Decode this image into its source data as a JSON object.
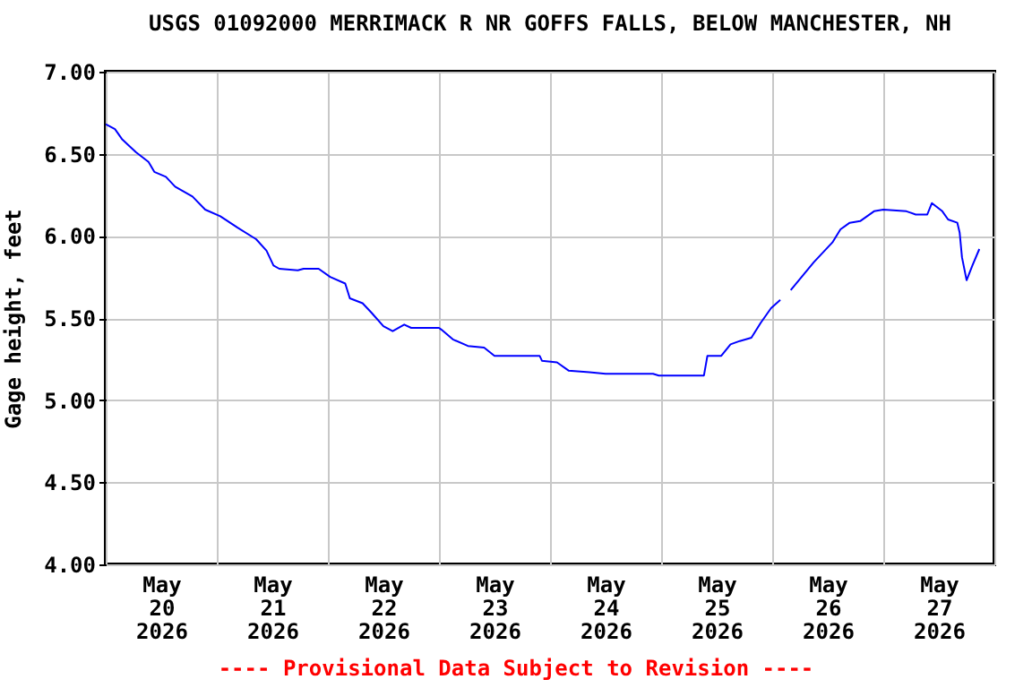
{
  "chart_data": {
    "type": "line",
    "title": "USGS 01092000 MERRIMACK R NR GOFFS FALLS, BELOW MANCHESTER, NH",
    "ylabel": "Gage height, feet",
    "annotations": [
      "---- Provisional Data Subject to Revision ----"
    ],
    "x": [
      "2026-05-20T00:00",
      "2026-05-20T02:00",
      "2026-05-20T03:30",
      "2026-05-20T06:30",
      "2026-05-20T09:15",
      "2026-05-20T10:30",
      "2026-05-20T13:00",
      "2026-05-20T15:00",
      "2026-05-20T18:45",
      "2026-05-20T21:30",
      "2026-05-21T00:45",
      "2026-05-21T04:30",
      "2026-05-21T08:30",
      "2026-05-21T10:45",
      "2026-05-21T12:15",
      "2026-05-21T13:30",
      "2026-05-21T17:30",
      "2026-05-21T18:45",
      "2026-05-21T22:00",
      "2026-05-22T00:30",
      "2026-05-22T03:45",
      "2026-05-22T04:45",
      "2026-05-22T07:30",
      "2026-05-22T09:30",
      "2026-05-22T12:00",
      "2026-05-22T14:00",
      "2026-05-22T16:30",
      "2026-05-22T18:00",
      "2026-05-23T00:00",
      "2026-05-23T00:30",
      "2026-05-23T03:00",
      "2026-05-23T06:15",
      "2026-05-23T09:45",
      "2026-05-23T12:00",
      "2026-05-23T21:45",
      "2026-05-23T22:15",
      "2026-05-24T01:30",
      "2026-05-24T04:00",
      "2026-05-24T08:30",
      "2026-05-24T12:00",
      "2026-05-24T14:30",
      "2026-05-24T22:15",
      "2026-05-24T23:30",
      "2026-05-25T09:15",
      "2026-05-25T10:00",
      "2026-05-25T13:00",
      "2026-05-25T15:00",
      "2026-05-25T17:00",
      "2026-05-25T19:30",
      "2026-05-25T21:30",
      "2026-05-25T23:45",
      "2026-05-26T01:45",
      "2026-05-26T03:00",
      "2026-05-26T04:00",
      "2026-05-26T09:00",
      "2026-05-26T13:00",
      "2026-05-26T14:45",
      "2026-05-26T16:45",
      "2026-05-26T19:00",
      "2026-05-26T22:00",
      "2026-05-27T00:00",
      "2026-05-27T05:00",
      "2026-05-27T07:00",
      "2026-05-27T09:30",
      "2026-05-27T10:30",
      "2026-05-27T12:45",
      "2026-05-27T14:00",
      "2026-05-27T16:00",
      "2026-05-27T16:30",
      "2026-05-27T17:00",
      "2026-05-27T18:00",
      "2026-05-27T19:15",
      "2026-05-27T20:45"
    ],
    "series": [
      {
        "color": "#0000ff",
        "values": [
          6.68,
          6.65,
          6.59,
          6.51,
          6.45,
          6.39,
          6.36,
          6.3,
          6.24,
          6.16,
          6.12,
          6.05,
          5.98,
          5.91,
          5.82,
          5.8,
          5.79,
          5.8,
          5.8,
          5.75,
          5.71,
          5.62,
          5.59,
          5.53,
          5.45,
          5.42,
          5.46,
          5.44,
          5.44,
          5.43,
          5.37,
          5.33,
          5.32,
          5.27,
          5.27,
          5.24,
          5.23,
          5.18,
          5.17,
          5.16,
          5.16,
          5.16,
          5.15,
          5.15,
          5.27,
          5.27,
          5.34,
          5.36,
          5.38,
          5.47,
          5.56,
          5.61,
          null,
          5.67,
          5.84,
          5.96,
          6.04,
          6.08,
          6.09,
          6.15,
          6.16,
          6.15,
          6.13,
          6.13,
          6.2,
          6.15,
          6.1,
          6.08,
          6.02,
          5.87,
          5.73,
          5.82,
          5.92
        ]
      }
    ],
    "xlim": [
      "2026-05-20T00:00",
      "2026-05-28T00:00"
    ],
    "xticks": [
      {
        "value": "2026-05-20T00:00",
        "label": null
      },
      {
        "value": "2026-05-20T12:00",
        "label": "May 20 2026"
      },
      {
        "value": "2026-05-21T00:00",
        "label": null
      },
      {
        "value": "2026-05-21T12:00",
        "label": "May 21 2026"
      },
      {
        "value": "2026-05-22T00:00",
        "label": null
      },
      {
        "value": "2026-05-22T12:00",
        "label": "May 22 2026"
      },
      {
        "value": "2026-05-23T00:00",
        "label": null
      },
      {
        "value": "2026-05-23T12:00",
        "label": "May 23 2026"
      },
      {
        "value": "2026-05-24T00:00",
        "label": null
      },
      {
        "value": "2026-05-24T12:00",
        "label": "May 24 2026"
      },
      {
        "value": "2026-05-25T00:00",
        "label": null
      },
      {
        "value": "2026-05-25T12:00",
        "label": "May 25 2026"
      },
      {
        "value": "2026-05-26T00:00",
        "label": null
      },
      {
        "value": "2026-05-26T12:00",
        "label": "May 26 2026"
      },
      {
        "value": "2026-05-27T00:00",
        "label": null
      },
      {
        "value": "2026-05-27T12:00",
        "label": "May 27 2026"
      },
      {
        "value": "2026-05-28T00:00",
        "label": null
      }
    ],
    "ylim": [
      4,
      7
    ],
    "yticks": [
      {
        "value": 4,
        "label": "4.00"
      },
      {
        "value": 4.5,
        "label": "4.50"
      },
      {
        "value": 5,
        "label": "5.00"
      },
      {
        "value": 5.5,
        "label": "5.50"
      },
      {
        "value": 6,
        "label": "6.00"
      },
      {
        "value": 6.5,
        "label": "6.50"
      },
      {
        "value": 7,
        "label": "7.00"
      }
    ],
    "grid": true
  }
}
